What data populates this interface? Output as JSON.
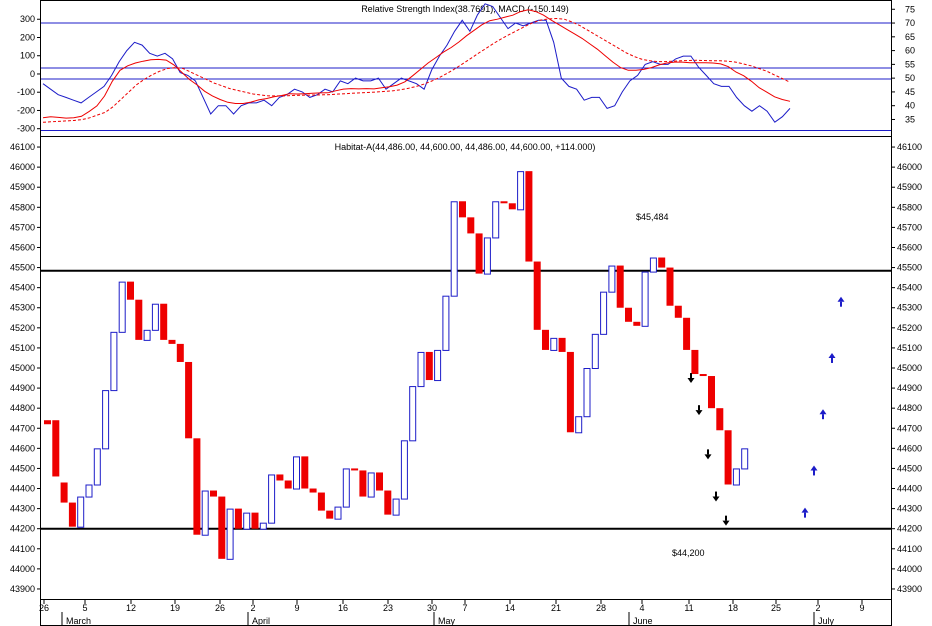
{
  "colors": {
    "bull": "#1c1cc8",
    "bear": "#ee0000",
    "rsi": "#1c1cc8",
    "macd": "#ee0000",
    "signal": "#ee0000",
    "hline": "#000000",
    "up_arrow": "#1c1cc8",
    "down_arrow": "#000000"
  },
  "chart_data": [
    {
      "type": "line",
      "title": "Relative Strength Index(38.7691), MACD (-150.149)",
      "left_axis": {
        "ticks": [
          -300,
          -200,
          -100,
          0,
          100,
          200,
          300
        ],
        "ylim": [
          -340,
          400
        ]
      },
      "right_axis": {
        "ticks": [
          35,
          40,
          45,
          50,
          55,
          60,
          65,
          70,
          75
        ],
        "ylim": [
          29,
          78
        ]
      },
      "reference_lines_right": [
        70,
        53.7,
        49.7,
        31
      ],
      "series": [
        {
          "key": "rsi",
          "axis": "right",
          "values": [
            48,
            46,
            44,
            43,
            42,
            41,
            43,
            45,
            47,
            51,
            56,
            60,
            63,
            62,
            59,
            58,
            59,
            57,
            52,
            51,
            49,
            43,
            37,
            40,
            40,
            37,
            40,
            41,
            41,
            42,
            40,
            43,
            44,
            46,
            45,
            43,
            44,
            46,
            45,
            49,
            48,
            50,
            49,
            49,
            50,
            46,
            48,
            50,
            49,
            48,
            46,
            53,
            58,
            62,
            67,
            71,
            67,
            73,
            77,
            76,
            72,
            68,
            70,
            69,
            70,
            71,
            71,
            63,
            50,
            47,
            46,
            42,
            43,
            43,
            39,
            40,
            45,
            49,
            51,
            55,
            56,
            55,
            55,
            57,
            58,
            58,
            54,
            51,
            48,
            47,
            47,
            43,
            40,
            38,
            40,
            38,
            34,
            36,
            39
          ]
        },
        {
          "key": "macd",
          "axis": "left",
          "values": [
            -240,
            -235,
            -238,
            -242,
            -240,
            -232,
            -205,
            -175,
            -120,
            -40,
            20,
            45,
            60,
            70,
            78,
            80,
            76,
            50,
            10,
            -30,
            -60,
            -95,
            -120,
            -140,
            -155,
            -162,
            -162,
            -154,
            -142,
            -135,
            -125,
            -118,
            -108,
            -110,
            -108,
            -106,
            -104,
            -103,
            -92,
            -83,
            -80,
            -82,
            -80,
            -82,
            -76,
            -70,
            -61,
            -43,
            -10,
            25,
            60,
            90,
            120,
            145,
            175,
            210,
            240,
            270,
            292,
            300,
            312,
            322,
            342,
            352,
            342,
            322,
            295,
            270,
            245,
            220,
            195,
            165,
            135,
            100,
            65,
            35,
            20,
            20,
            25,
            35,
            50,
            60,
            65,
            65,
            62,
            62,
            62,
            60,
            55,
            40,
            10,
            -10,
            -40,
            -75,
            -100,
            -125,
            -140,
            -150
          ]
        },
        {
          "key": "signal",
          "axis": "left",
          "values": [
            -265,
            -262,
            -260,
            -257,
            -255,
            -250,
            -240,
            -225,
            -210,
            -180,
            -140,
            -100,
            -60,
            -30,
            -5,
            15,
            30,
            35,
            30,
            10,
            -10,
            -30,
            -50,
            -65,
            -80,
            -90,
            -100,
            -110,
            -115,
            -120,
            -120,
            -120,
            -118,
            -117,
            -116,
            -115,
            -114,
            -113,
            -110,
            -108,
            -105,
            -103,
            -101,
            -98,
            -95,
            -92,
            -86,
            -78,
            -68,
            -55,
            -38,
            -18,
            5,
            30,
            58,
            86,
            115,
            142,
            170,
            195,
            218,
            240,
            262,
            282,
            296,
            302,
            304,
            300,
            285,
            265,
            240,
            215,
            190,
            165,
            140,
            115,
            95,
            80,
            72,
            68,
            68,
            70,
            72,
            74,
            75,
            74,
            73,
            72,
            70,
            65,
            55,
            45,
            30,
            15,
            -5,
            -25,
            -45
          ]
        }
      ]
    },
    {
      "type": "candlestick",
      "title": "Habitat-A(44,486.00, 44,600.00, 44,486.00, 44,600.00, +114.000)",
      "axis_ticks": [
        43900,
        44000,
        44100,
        44200,
        44300,
        44400,
        44500,
        44600,
        44700,
        44800,
        44900,
        45000,
        45100,
        45200,
        45300,
        45400,
        45500,
        45600,
        45700,
        45800,
        45900,
        46000,
        46100
      ],
      "ylim": [
        43850,
        46150
      ],
      "resistance": {
        "value": 45484,
        "label": "$45,484"
      },
      "support": {
        "value": 44200,
        "label": "$44,200"
      },
      "candles": [
        [
          44740,
          44720
        ],
        [
          44740,
          44460
        ],
        [
          44430,
          44330
        ],
        [
          44330,
          44210
        ],
        [
          44210,
          44360
        ],
        [
          44360,
          44420
        ],
        [
          44420,
          44600
        ],
        [
          44600,
          44890
        ],
        [
          44890,
          45180
        ],
        [
          45180,
          45430
        ],
        [
          45430,
          45340
        ],
        [
          45340,
          45140
        ],
        [
          45140,
          45190
        ],
        [
          45190,
          45320
        ],
        [
          45320,
          45140
        ],
        [
          45140,
          45120
        ],
        [
          45120,
          45030
        ],
        [
          45030,
          44650
        ],
        [
          44650,
          44170
        ],
        [
          44170,
          44390
        ],
        [
          44390,
          44360
        ],
        [
          44360,
          44050
        ],
        [
          44050,
          44300
        ],
        [
          44300,
          44200
        ],
        [
          44200,
          44280
        ],
        [
          44280,
          44200
        ],
        [
          44200,
          44230
        ],
        [
          44230,
          44470
        ],
        [
          44470,
          44440
        ],
        [
          44440,
          44400
        ],
        [
          44400,
          44560
        ],
        [
          44560,
          44400
        ],
        [
          44400,
          44380
        ],
        [
          44380,
          44290
        ],
        [
          44290,
          44250
        ],
        [
          44250,
          44310
        ],
        [
          44310,
          44500
        ],
        [
          44500,
          44490
        ],
        [
          44490,
          44360
        ],
        [
          44360,
          44480
        ],
        [
          44480,
          44390
        ],
        [
          44390,
          44270
        ],
        [
          44270,
          44350
        ],
        [
          44350,
          44640
        ],
        [
          44640,
          44910
        ],
        [
          44910,
          45080
        ],
        [
          45080,
          44940
        ],
        [
          44940,
          45090
        ],
        [
          45090,
          45360
        ],
        [
          45360,
          45830
        ],
        [
          45830,
          45750
        ],
        [
          45750,
          45670
        ],
        [
          45670,
          45470
        ],
        [
          45470,
          45650
        ],
        [
          45650,
          45830
        ],
        [
          45830,
          45820
        ],
        [
          45820,
          45790
        ],
        [
          45790,
          45980
        ],
        [
          45980,
          45530
        ],
        [
          45530,
          45190
        ],
        [
          45190,
          45090
        ],
        [
          45090,
          45150
        ],
        [
          45150,
          45080
        ],
        [
          45080,
          44680
        ],
        [
          44680,
          44760
        ],
        [
          44760,
          45000
        ],
        [
          45000,
          45170
        ],
        [
          45170,
          45380
        ],
        [
          45380,
          45510
        ],
        [
          45510,
          45300
        ],
        [
          45300,
          45230
        ],
        [
          45230,
          45210
        ],
        [
          45210,
          45480
        ],
        [
          45480,
          45550
        ],
        [
          45550,
          45500
        ],
        [
          45500,
          45310
        ],
        [
          45310,
          45250
        ],
        [
          45250,
          45090
        ],
        [
          45090,
          44970
        ],
        [
          44970,
          44960
        ],
        [
          44960,
          44800
        ],
        [
          44800,
          44690
        ],
        [
          44690,
          44420
        ],
        [
          44420,
          44500
        ],
        [
          44500,
          44600
        ]
      ],
      "down_arrows": [
        44950,
        44790,
        44570,
        44360,
        44240
      ],
      "up_arrows": [
        44280,
        44490,
        44770,
        45050,
        45330
      ],
      "x_ticks": [
        "26",
        "5",
        "12",
        "19",
        "26",
        "2",
        "9",
        "16",
        "23",
        "30",
        "7",
        "14",
        "21",
        "28",
        "4",
        "11",
        "18",
        "25",
        "2",
        "9"
      ],
      "months": [
        "March",
        "April",
        "May",
        "June",
        "July"
      ]
    }
  ]
}
